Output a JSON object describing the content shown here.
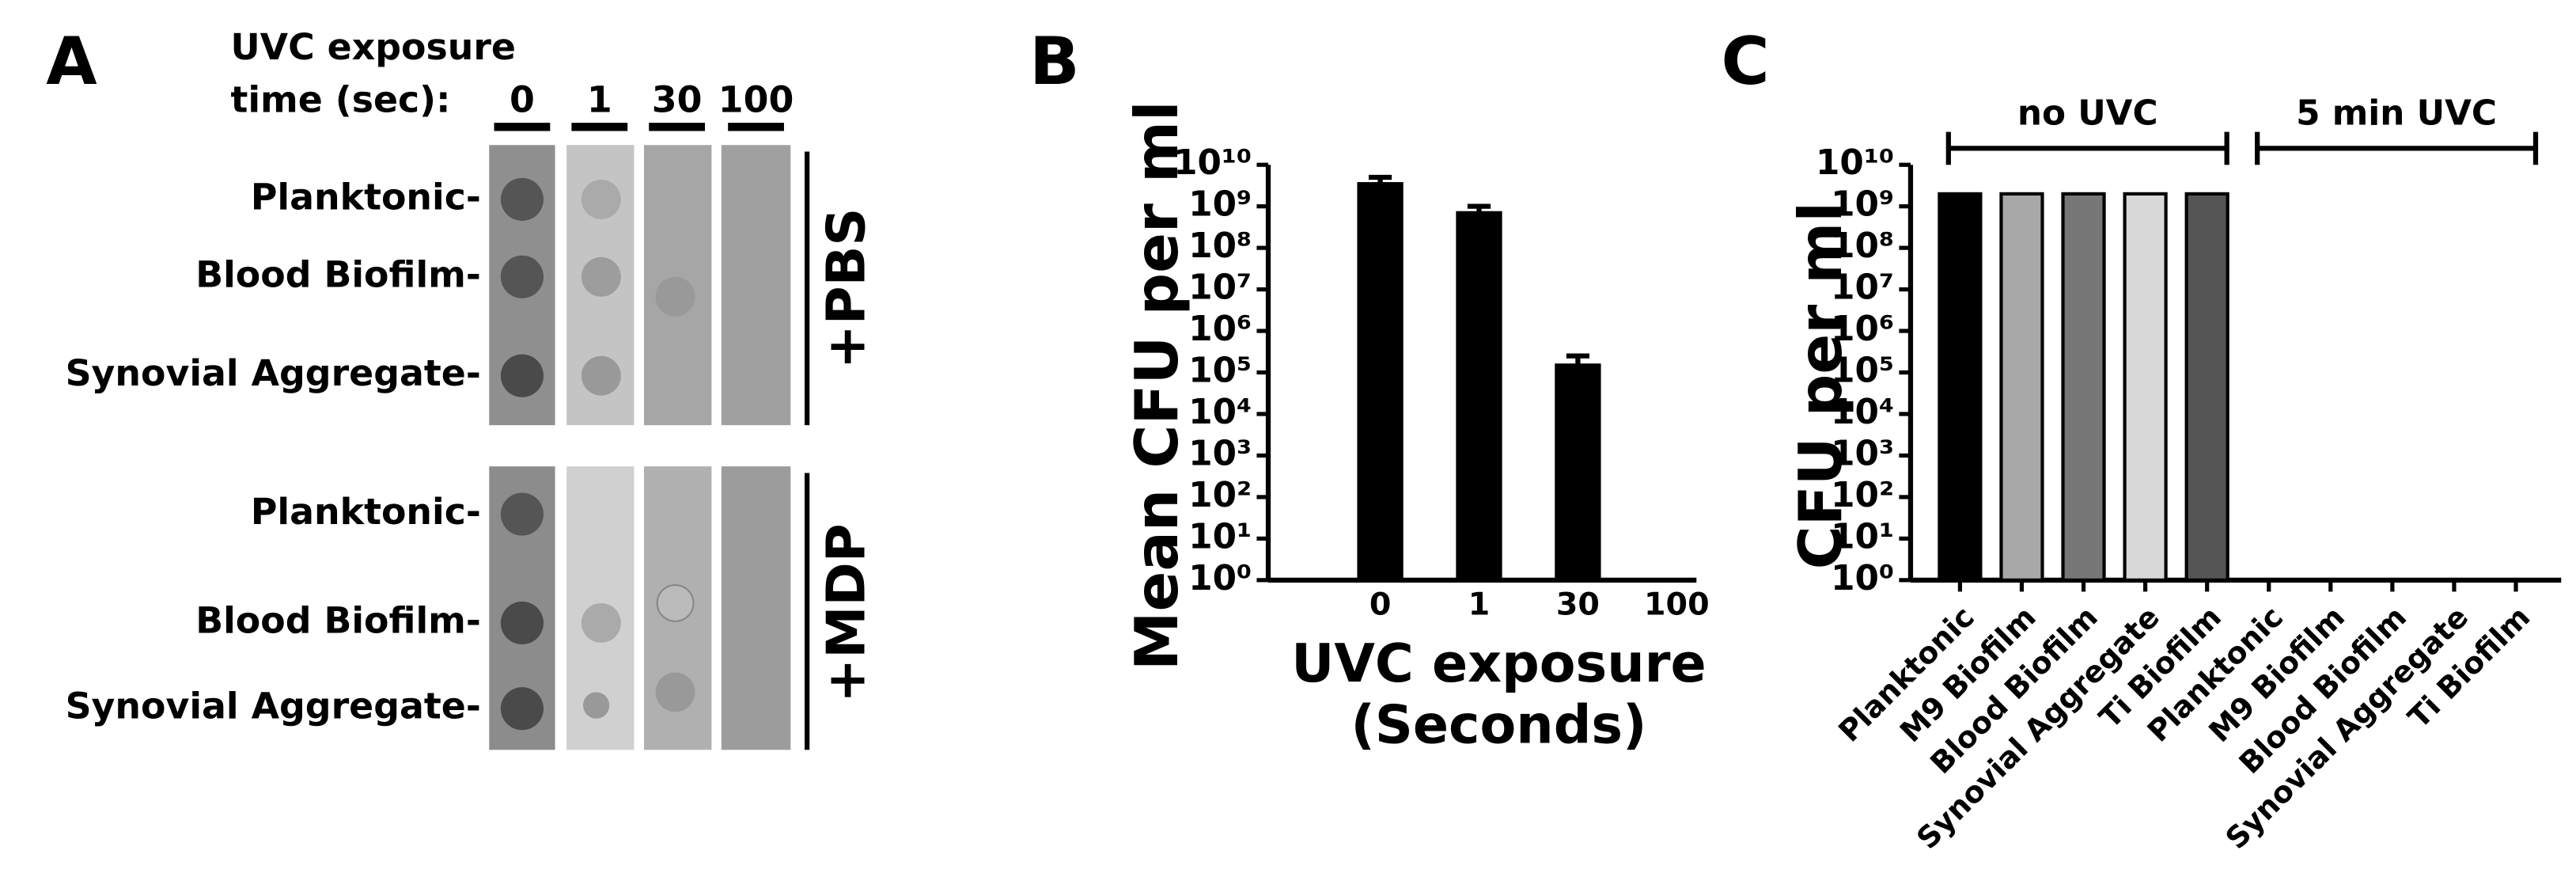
{
  "panel_labels": [
    "A",
    "B",
    "C"
  ],
  "panel_a": {
    "header": [
      "UVC exposure",
      "time (sec):"
    ],
    "columns": [
      "0",
      "1",
      "30",
      "100"
    ],
    "groups": [
      {
        "label": "+PBS",
        "rows": [
          "Planktonic-",
          "Blood Biofilm-",
          "Synovial Aggregate-"
        ]
      },
      {
        "label": "+MDP",
        "rows": [
          "Planktonic-",
          "Blood Biofilm-",
          "Synovial Aggregate-"
        ]
      }
    ]
  },
  "chart_data": [
    {
      "type": "bar",
      "y_label": "Mean CFU per ml",
      "x_label": [
        "UVC exposure",
        "(Seconds)"
      ],
      "categories": [
        "0",
        "1",
        "30",
        "100"
      ],
      "values": [
        3500000000,
        700000000,
        150000,
        null
      ],
      "errors": [
        1500000000,
        300000000,
        100000,
        null
      ],
      "color": "#000000",
      "log_scale": true,
      "ylim": [
        1,
        10000000000
      ],
      "yticks": [
        {
          "value": 1,
          "label": "10⁰"
        },
        {
          "value": 10,
          "label": "10¹"
        },
        {
          "value": 100,
          "label": "10²"
        },
        {
          "value": 1000,
          "label": "10³"
        },
        {
          "value": 10000,
          "label": "10⁴"
        },
        {
          "value": 100000,
          "label": "10⁵"
        },
        {
          "value": 1000000,
          "label": "10⁶"
        },
        {
          "value": 10000000,
          "label": "10⁷"
        },
        {
          "value": 100000000,
          "label": "10⁸"
        },
        {
          "value": 1000000000,
          "label": "10⁹"
        },
        {
          "value": 10000000000,
          "label": "10¹⁰"
        }
      ]
    },
    {
      "type": "bar",
      "y_label": "CFU per ml",
      "annotations": [
        "no UVC",
        "5 min UVC"
      ],
      "categories": [
        "Planktonic",
        "M9 Biofilm",
        "Blood Biofilm",
        "Synovial Aggregate",
        "Ti Biofilm",
        "Planktonic",
        "M9 Biofilm",
        "Blood Biofilm",
        "Synovial Aggregate",
        "Ti Biofilm"
      ],
      "values": [
        2000000000,
        2000000000,
        2000000000,
        2000000000,
        2000000000,
        null,
        null,
        null,
        null,
        null
      ],
      "colors": [
        "#000000",
        "#a8a8a8",
        "#777777",
        "#d8d8d8",
        "#555555",
        "#000000",
        "#a8a8a8",
        "#777777",
        "#d8d8d8",
        "#555555"
      ],
      "log_scale": true,
      "ylim": [
        1,
        10000000000
      ],
      "yticks": [
        {
          "value": 1,
          "label": "10⁰"
        },
        {
          "value": 10,
          "label": "10¹"
        },
        {
          "value": 100,
          "label": "10²"
        },
        {
          "value": 1000,
          "label": "10³"
        },
        {
          "value": 10000,
          "label": "10⁴"
        },
        {
          "value": 100000,
          "label": "10⁵"
        },
        {
          "value": 1000000,
          "label": "10⁶"
        },
        {
          "value": 10000000,
          "label": "10⁷"
        },
        {
          "value": 100000000,
          "label": "10⁸"
        },
        {
          "value": 1000000000,
          "label": "10⁹"
        },
        {
          "value": 10000000000,
          "label": "10¹⁰"
        }
      ]
    }
  ]
}
